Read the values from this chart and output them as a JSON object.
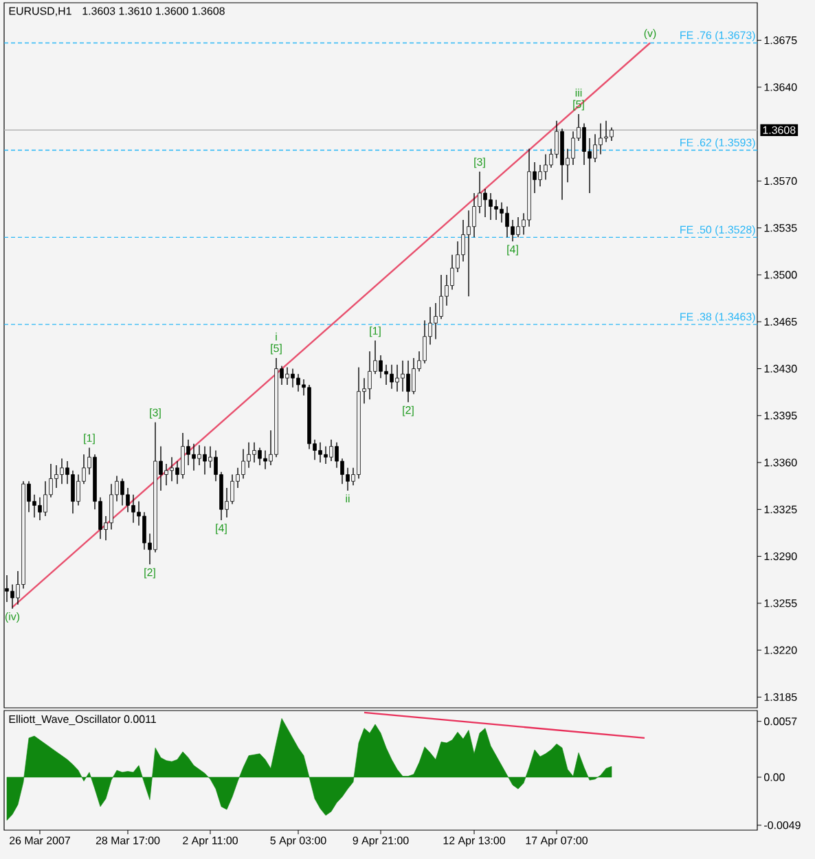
{
  "chart_data": [
    {
      "type": "candlestick",
      "title": "EURUSD,H1",
      "subtitle": "1.3603 1.3610 1.3600 1.3608",
      "categories": [
        null,
        null,
        null,
        null,
        null,
        null,
        null,
        null,
        null,
        null,
        null,
        null,
        null,
        null,
        null,
        null,
        null,
        null,
        null,
        null,
        null,
        null,
        null,
        null,
        null,
        null,
        null,
        null,
        null,
        null,
        null,
        null,
        null,
        null,
        null,
        null,
        null,
        null,
        null,
        null,
        null,
        null,
        null,
        null,
        null,
        null,
        null,
        null,
        null,
        null,
        null,
        null,
        null,
        null,
        null,
        null,
        null,
        null,
        null,
        null,
        null,
        null,
        null,
        null,
        null,
        null,
        null,
        null,
        null,
        null,
        null,
        null,
        null,
        null,
        null,
        null,
        null,
        null,
        null,
        null,
        null,
        null,
        null,
        null,
        null,
        null,
        null,
        null,
        null,
        null,
        null,
        null,
        null,
        null,
        null,
        null,
        null,
        null,
        null,
        null,
        null,
        null,
        null,
        null,
        null,
        null,
        null,
        null,
        null,
        null,
        null,
        null,
        null,
        null,
        null,
        null,
        null,
        null,
        null,
        null,
        null,
        null,
        null,
        null,
        null,
        null,
        null,
        null,
        null,
        null,
        null,
        null,
        null,
        null,
        null,
        null,
        null
      ],
      "ylim": [
        1.3177,
        1.3703
      ],
      "yticks": [
        1.3185,
        {
          "value": 1.322,
          "label": "1.3220"
        },
        1.3255,
        {
          "value": 1.329,
          "label": "1.3290"
        },
        1.3325,
        {
          "value": 1.336,
          "label": "1.3360"
        },
        1.3395,
        {
          "value": 1.343,
          "label": "1.3430"
        },
        1.3465,
        {
          "value": 1.35,
          "label": "1.3500"
        },
        1.3535,
        {
          "value": 1.357,
          "label": "1.3570"
        },
        {
          "value": 1.364,
          "label": "1.3640"
        },
        1.3675
      ],
      "tick_labels": "y",
      "ref_lines": [
        {
          "axis": "y",
          "value": 1.3673,
          "label": "FE .76 (1.3673)",
          "color": "#29b6f6",
          "line_style": "dashed"
        },
        {
          "axis": "y",
          "value": 1.3593,
          "label": "FE .62 (1.3593)",
          "color": "#29b6f6",
          "line_style": "dashed"
        },
        {
          "axis": "y",
          "value": 1.3528,
          "label": "FE .50 (1.3528)",
          "color": "#29b6f6",
          "line_style": "dashed"
        },
        {
          "axis": "y",
          "value": 1.3463,
          "label": "FE .38 (1.3463)",
          "color": "#29b6f6",
          "line_style": "dashed"
        },
        {
          "axis": "y",
          "value": 1.3608,
          "label": "1.3608",
          "color": "#b4b4b4",
          "line_style": "solid"
        }
      ],
      "series": [
        {
          "type": "line",
          "color": "#e8506e",
          "values": [
            null,
            1.3252,
            null,
            null,
            null,
            null,
            null,
            null,
            null,
            null,
            null,
            null,
            null,
            null,
            null,
            null,
            null,
            null,
            null,
            null,
            null,
            null,
            null,
            null,
            null,
            null,
            null,
            null,
            null,
            null,
            null,
            null,
            null,
            null,
            null,
            null,
            null,
            null,
            null,
            null,
            null,
            null,
            null,
            null,
            null,
            null,
            null,
            null,
            null,
            null,
            null,
            null,
            null,
            null,
            null,
            null,
            null,
            null,
            null,
            null,
            null,
            null,
            null,
            null,
            null,
            null,
            null,
            null,
            null,
            null,
            null,
            null,
            null,
            null,
            null,
            null,
            null,
            null,
            null,
            null,
            null,
            null,
            null,
            null,
            null,
            null,
            null,
            null,
            null,
            null,
            null,
            null,
            null,
            null,
            null,
            null,
            null,
            null,
            null,
            null,
            null,
            null,
            null,
            null,
            null,
            null,
            null,
            null,
            null,
            null,
            null,
            null,
            null,
            null,
            null,
            null,
            null,
            1.3673,
            null,
            null,
            null,
            null,
            null,
            null,
            null,
            null,
            null,
            null,
            null,
            null,
            null,
            null,
            null,
            null,
            null,
            null,
            null
          ]
        },
        {
          "color": "#000000",
          "ohlc": [
            [
              1.3266,
              1.3276,
              1.3256,
              1.3264
            ],
            [
              1.3264,
              1.3269,
              1.3251,
              1.3259
            ],
            [
              1.3259,
              1.3279,
              1.3254,
              1.3269
            ],
            [
              1.3269,
              1.3346,
              1.3266,
              1.3344
            ],
            [
              1.3344,
              1.3346,
              1.3323,
              1.3331
            ],
            [
              1.3331,
              1.3336,
              1.3319,
              1.3328
            ],
            [
              1.3328,
              1.3334,
              1.3317,
              1.3323
            ],
            [
              1.3323,
              1.3346,
              1.332,
              1.3336
            ],
            [
              1.3336,
              1.3359,
              1.3334,
              1.3348
            ],
            [
              1.3348,
              1.3358,
              1.3341,
              1.3351
            ],
            [
              1.3351,
              1.3363,
              1.3344,
              1.3356
            ],
            [
              1.3356,
              1.3361,
              1.3344,
              1.3351
            ],
            [
              1.3351,
              1.3354,
              1.3322,
              1.3331
            ],
            [
              1.3331,
              1.3351,
              1.3328,
              1.3346
            ],
            [
              1.3346,
              1.3366,
              1.3344,
              1.3356
            ],
            [
              1.3356,
              1.3371,
              1.3351,
              1.3364
            ],
            [
              1.3364,
              1.3366,
              1.3325,
              1.3331
            ],
            [
              1.3331,
              1.3334,
              1.3303,
              1.331
            ],
            [
              1.331,
              1.332,
              1.3302,
              1.3315
            ],
            [
              1.3315,
              1.3344,
              1.331,
              1.3336
            ],
            [
              1.3336,
              1.335,
              1.3331,
              1.3346
            ],
            [
              1.3346,
              1.3348,
              1.3328,
              1.3336
            ],
            [
              1.3336,
              1.3341,
              1.3323,
              1.3328
            ],
            [
              1.3328,
              1.3336,
              1.3315,
              1.3323
            ],
            [
              1.3323,
              1.3331,
              1.3313,
              1.332
            ],
            [
              1.332,
              1.3323,
              1.3295,
              1.33
            ],
            [
              1.33,
              1.3307,
              1.3284,
              1.3295
            ],
            [
              1.3295,
              1.339,
              1.3293,
              1.3361
            ],
            [
              1.3361,
              1.3372,
              1.3339,
              1.3351
            ],
            [
              1.3351,
              1.3359,
              1.3343,
              1.3354
            ],
            [
              1.3354,
              1.3364,
              1.3346,
              1.3356
            ],
            [
              1.3356,
              1.3361,
              1.3344,
              1.3351
            ],
            [
              1.3351,
              1.3382,
              1.3348,
              1.3372
            ],
            [
              1.3372,
              1.3377,
              1.3358,
              1.3366
            ],
            [
              1.3366,
              1.3374,
              1.3354,
              1.3363
            ],
            [
              1.3363,
              1.3373,
              1.3358,
              1.3366
            ],
            [
              1.3366,
              1.3372,
              1.3351,
              1.3361
            ],
            [
              1.3361,
              1.3372,
              1.3356,
              1.3364
            ],
            [
              1.3364,
              1.3369,
              1.3346,
              1.3351
            ],
            [
              1.3351,
              1.3353,
              1.3317,
              1.3325
            ],
            [
              1.3325,
              1.3341,
              1.3319,
              1.3331
            ],
            [
              1.3331,
              1.3351,
              1.3329,
              1.3346
            ],
            [
              1.3346,
              1.3356,
              1.3341,
              1.3351
            ],
            [
              1.3351,
              1.337,
              1.3348,
              1.3361
            ],
            [
              1.3361,
              1.3375,
              1.3356,
              1.3366
            ],
            [
              1.3366,
              1.3375,
              1.336,
              1.3369
            ],
            [
              1.3369,
              1.3371,
              1.3358,
              1.3363
            ],
            [
              1.3363,
              1.3369,
              1.3355,
              1.3361
            ],
            [
              1.3361,
              1.3384,
              1.3358,
              1.3366
            ],
            [
              1.3366,
              1.3438,
              1.3364,
              1.343
            ],
            [
              1.343,
              1.3432,
              1.3418,
              1.3423
            ],
            [
              1.3423,
              1.3431,
              1.3418,
              1.3426
            ],
            [
              1.3426,
              1.343,
              1.3416,
              1.3423
            ],
            [
              1.3423,
              1.3426,
              1.3413,
              1.3418
            ],
            [
              1.3418,
              1.3422,
              1.341,
              1.3416
            ],
            [
              1.3416,
              1.3418,
              1.337,
              1.3374
            ],
            [
              1.3374,
              1.3377,
              1.3362,
              1.3369
            ],
            [
              1.3369,
              1.3375,
              1.336,
              1.3366
            ],
            [
              1.3366,
              1.3372,
              1.3359,
              1.3364
            ],
            [
              1.3364,
              1.3377,
              1.3361,
              1.3372
            ],
            [
              1.3372,
              1.3375,
              1.3356,
              1.3361
            ],
            [
              1.3361,
              1.3363,
              1.3344,
              1.3351
            ],
            [
              1.3351,
              1.3356,
              1.3339,
              1.3346
            ],
            [
              1.3346,
              1.3356,
              1.3343,
              1.3351
            ],
            [
              1.3351,
              1.3431,
              1.3348,
              1.3413
            ],
            [
              1.3413,
              1.3423,
              1.3404,
              1.3415
            ],
            [
              1.3415,
              1.3443,
              1.3407,
              1.3428
            ],
            [
              1.3428,
              1.3451,
              1.3426,
              1.3436
            ],
            [
              1.3436,
              1.344,
              1.3423,
              1.3428
            ],
            [
              1.3428,
              1.3433,
              1.3418,
              1.3426
            ],
            [
              1.3426,
              1.3433,
              1.3415,
              1.342
            ],
            [
              1.342,
              1.3433,
              1.3413,
              1.3423
            ],
            [
              1.3423,
              1.3436,
              1.3413,
              1.3426
            ],
            [
              1.3426,
              1.3436,
              1.3405,
              1.3413
            ],
            [
              1.3413,
              1.3438,
              1.3411,
              1.343
            ],
            [
              1.343,
              1.3443,
              1.3428,
              1.3436
            ],
            [
              1.3436,
              1.3466,
              1.3434,
              1.3454
            ],
            [
              1.3454,
              1.3476,
              1.3448,
              1.3464
            ],
            [
              1.3464,
              1.3479,
              1.3452,
              1.3469
            ],
            [
              1.3469,
              1.35,
              1.3467,
              1.3484
            ],
            [
              1.3484,
              1.35,
              1.3477,
              1.3492
            ],
            [
              1.3492,
              1.3515,
              1.3489,
              1.3505
            ],
            [
              1.3505,
              1.3525,
              1.3502,
              1.3515
            ],
            [
              1.3515,
              1.3541,
              1.351,
              1.353
            ],
            [
              1.353,
              1.3548,
              1.3484,
              1.3536
            ],
            [
              1.3536,
              1.3561,
              1.3528,
              1.3551
            ],
            [
              1.3551,
              1.3577,
              1.3546,
              1.3561
            ],
            [
              1.3561,
              1.3564,
              1.3543,
              1.3556
            ],
            [
              1.3556,
              1.3561,
              1.3541,
              1.3551
            ],
            [
              1.3551,
              1.3556,
              1.3541,
              1.3549
            ],
            [
              1.3549,
              1.3554,
              1.3539,
              1.3546
            ],
            [
              1.3546,
              1.3551,
              1.3528,
              1.3536
            ],
            [
              1.3536,
              1.3541,
              1.3525,
              1.353
            ],
            [
              1.353,
              1.3543,
              1.3528,
              1.3536
            ],
            [
              1.3536,
              1.3546,
              1.353,
              1.3541
            ],
            [
              1.3541,
              1.3594,
              1.3536,
              1.3577
            ],
            [
              1.3577,
              1.3584,
              1.3561,
              1.3571
            ],
            [
              1.3571,
              1.3582,
              1.3566,
              1.3577
            ],
            [
              1.3577,
              1.359,
              1.3571,
              1.3582
            ],
            [
              1.3582,
              1.3594,
              1.358,
              1.359
            ],
            [
              1.359,
              1.3615,
              1.3587,
              1.3607
            ],
            [
              1.3607,
              1.3609,
              1.3556,
              1.3582
            ],
            [
              1.3582,
              1.3594,
              1.3569,
              1.3587
            ],
            [
              1.3587,
              1.3607,
              1.3582,
              1.3602
            ],
            [
              1.3602,
              1.362,
              1.36,
              1.361
            ],
            [
              1.361,
              1.3613,
              1.3582,
              1.3592
            ],
            [
              1.3592,
              1.3602,
              1.3561,
              1.3587
            ],
            [
              1.3587,
              1.3605,
              1.3584,
              1.3597
            ],
            [
              1.3597,
              1.3613,
              1.359,
              1.3602
            ],
            [
              1.3602,
              1.3615,
              1.3599,
              1.3603
            ],
            [
              1.3603,
              1.361,
              1.36,
              1.3608
            ],
            null,
            null,
            null,
            null,
            null,
            null,
            null,
            null,
            null,
            null,
            null,
            null,
            null,
            null,
            null,
            null,
            null,
            null,
            null,
            null,
            null,
            null,
            null,
            null,
            null,
            null
          ]
        }
      ],
      "annotations": [
        {
          "text": "(iv)",
          "y": 1.3251
        },
        {
          "text": "[1]",
          "y": 1.3371
        },
        {
          "text": "[2]",
          "y": 1.3284
        },
        {
          "text": "[3]",
          "y": 1.339
        },
        {
          "text": "[4]",
          "y": 1.3317
        },
        {
          "text": "[5]",
          "y": 1.3438
        },
        {
          "text": "i",
          "y": 1.3438
        },
        {
          "text": "ii",
          "y": 1.3339
        },
        {
          "text": "[1]",
          "y": 1.3451
        },
        {
          "text": "[2]",
          "y": 1.3405
        },
        {
          "text": "[3]",
          "y": 1.3577
        },
        {
          "text": "[4]",
          "y": 1.3525
        },
        {
          "text": "[5]",
          "y": 1.362
        },
        {
          "text": "iii",
          "y": 1.362
        },
        {
          "text": "(v)",
          "y": 1.3673
        }
      ]
    },
    {
      "type": "area",
      "title": "Elliott_Wave_Oscillator 0.0011",
      "categories": [
        null,
        null,
        null,
        null,
        null,
        null,
        "26 Mar 2007",
        null,
        null,
        null,
        null,
        null,
        null,
        null,
        null,
        null,
        null,
        null,
        null,
        null,
        null,
        null,
        "28 Mar 17:00",
        null,
        null,
        null,
        null,
        null,
        null,
        null,
        null,
        null,
        null,
        null,
        null,
        null,
        null,
        "2 Apr 11:00",
        null,
        null,
        null,
        null,
        null,
        null,
        null,
        null,
        null,
        null,
        null,
        null,
        null,
        null,
        null,
        "5 Apr 03:00",
        null,
        null,
        null,
        null,
        null,
        null,
        null,
        null,
        null,
        null,
        null,
        null,
        null,
        null,
        "9 Apr 21:00",
        null,
        null,
        null,
        null,
        null,
        null,
        null,
        null,
        null,
        null,
        null,
        null,
        null,
        null,
        null,
        null,
        "12 Apr 13:00",
        null,
        null,
        null,
        null,
        null,
        null,
        null,
        null,
        null,
        null,
        null,
        null,
        null,
        null,
        "17 Apr 07:00",
        null,
        null,
        null,
        null,
        null,
        null,
        null,
        null,
        null,
        null,
        null,
        null,
        null,
        null,
        null,
        null,
        null,
        null,
        null,
        null,
        null,
        null,
        null,
        null,
        null,
        null,
        null,
        null,
        null,
        null,
        null,
        null,
        null,
        null,
        null,
        null
      ],
      "ylim": [
        -0.0054,
        0.0068
      ],
      "yticks": [
        0.0057,
        {
          "value": 0,
          "label": "0.00"
        },
        -0.0049
      ],
      "series": [
        {
          "color": "#108810",
          "values": [
            -0.0044,
            -0.0038,
            -0.0028,
            -0.0005,
            0.004,
            0.0042,
            0.0038,
            0.0034,
            0.003,
            0.0026,
            0.0022,
            0.0018,
            0.0013,
            0.0007,
            -0.0004,
            0.0005,
            -0.0012,
            -0.003,
            -0.0022,
            -0.0003,
            0.0007,
            0.0005,
            0.0006,
            0.0005,
            0.0012,
            -0.0006,
            -0.0023,
            0.003,
            0.002,
            0.0017,
            0.0016,
            0.0018,
            0.0026,
            0.002,
            0.0012,
            0.0008,
            0.0004,
            -0.0002,
            -0.0012,
            -0.003,
            -0.0033,
            -0.002,
            -0.0004,
            0.001,
            0.0022,
            0.0023,
            0.0024,
            0.0018,
            0.0009,
            0.0035,
            0.006,
            0.005,
            0.004,
            0.003,
            0.0022,
            0.0,
            -0.0022,
            -0.0032,
            -0.0039,
            -0.0035,
            -0.0026,
            -0.002,
            -0.0012,
            -0.0005,
            0.0035,
            0.005,
            0.0045,
            0.0054,
            0.0045,
            0.003,
            0.0018,
            0.0008,
            0.0001,
            0.0001,
            0.0003,
            0.0015,
            0.0031,
            0.0025,
            0.0018,
            0.0036,
            0.0035,
            0.0038,
            0.0046,
            0.0039,
            0.0048,
            0.0024,
            0.0045,
            0.005,
            0.0032,
            0.0022,
            0.0012,
            0.0002,
            -0.0008,
            -0.0012,
            -0.0006,
            0.001,
            0.0028,
            0.0021,
            0.0024,
            0.0028,
            0.0034,
            0.003,
            0.0008,
            0.0001,
            0.0025,
            0.001,
            -0.0003,
            -0.0002,
            0.0002,
            0.0009,
            0.0011,
            null,
            null,
            null,
            null,
            null,
            null,
            null,
            null,
            null,
            null,
            null,
            null,
            null,
            null,
            null,
            null,
            null,
            null,
            null,
            null,
            null,
            null,
            null,
            null,
            null,
            null
          ]
        },
        {
          "type": "line",
          "color": "#e8305a",
          "values": [
            null,
            null,
            null,
            null,
            null,
            null,
            null,
            null,
            null,
            null,
            null,
            null,
            null,
            null,
            null,
            null,
            null,
            null,
            null,
            null,
            null,
            null,
            null,
            null,
            null,
            null,
            null,
            null,
            null,
            null,
            null,
            null,
            null,
            null,
            null,
            null,
            null,
            null,
            null,
            null,
            null,
            null,
            null,
            null,
            null,
            null,
            null,
            null,
            null,
            null,
            null,
            null,
            null,
            null,
            null,
            null,
            null,
            null,
            null,
            null,
            null,
            null,
            null,
            null,
            null,
            0.0066,
            null,
            null,
            null,
            null,
            null,
            null,
            null,
            null,
            null,
            null,
            null,
            null,
            null,
            null,
            null,
            null,
            null,
            null,
            null,
            null,
            null,
            null,
            null,
            null,
            null,
            null,
            null,
            null,
            null,
            null,
            null,
            null,
            null,
            null,
            null,
            null,
            null,
            null,
            null,
            null,
            null,
            null,
            null,
            null,
            null,
            null,
            null,
            null,
            null,
            null,
            0.004,
            null,
            null,
            null,
            null,
            null,
            null,
            null,
            null,
            null,
            null,
            null,
            null,
            null,
            null,
            null,
            null,
            null,
            null,
            null,
            null
          ]
        }
      ]
    }
  ]
}
